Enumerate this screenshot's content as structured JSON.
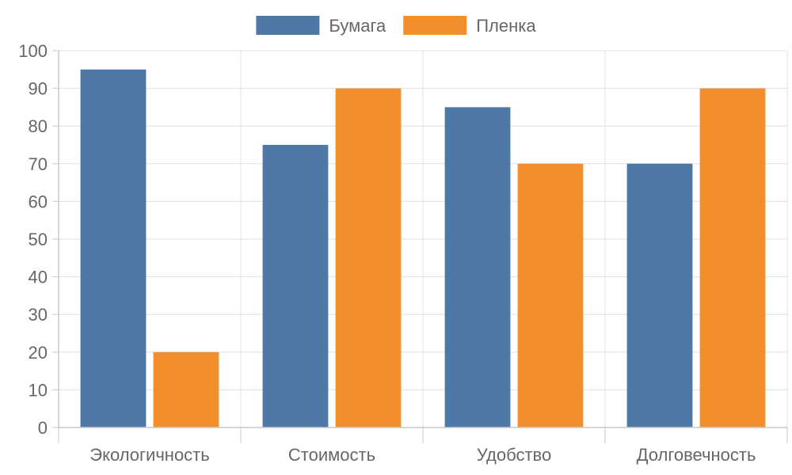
{
  "chart_data": {
    "type": "bar",
    "categories": [
      "Экологичность",
      "Стоимость",
      "Удобство",
      "Долговечность"
    ],
    "series": [
      {
        "name": "Бумага",
        "values": [
          95,
          75,
          85,
          70
        ],
        "color": "#4e79a7"
      },
      {
        "name": "Пленка",
        "values": [
          20,
          90,
          70,
          90
        ],
        "color": "#f28e2c"
      }
    ],
    "ylim": [
      0,
      100
    ],
    "ytick_step": 10,
    "grid": true,
    "legend_position": "top-center"
  }
}
